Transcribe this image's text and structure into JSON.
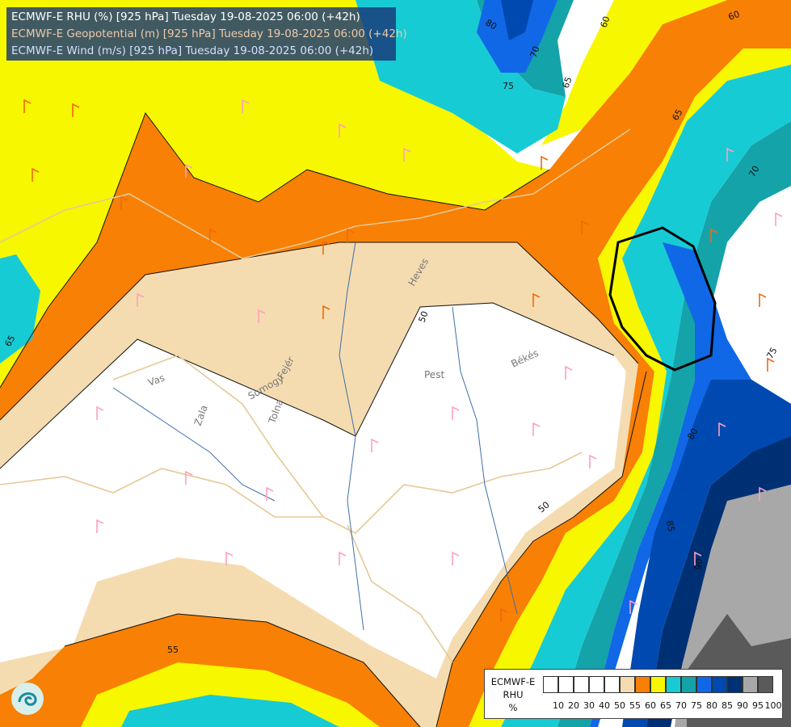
{
  "title_lines": [
    "ECMWF-E RHU (%) [925 hPa] Tuesday 19-08-2025 06:00 (+42h)",
    "ECMWF-E Geopotential (m) [925 hPa] Tuesday 19-08-2025 06:00 (+42h)",
    "ECMWF-E Wind (m/s) [925 hPa] Tuesday 19-08-2025 06:00 (+42h)"
  ],
  "legend": {
    "title_lines": [
      "ECMWF-E",
      "RHU",
      "%"
    ],
    "ticks": [
      "10",
      "20",
      "30",
      "40",
      "50",
      "55",
      "60",
      "65",
      "70",
      "75",
      "80",
      "85",
      "90",
      "95",
      "100"
    ],
    "colors": [
      "#ffffff",
      "#ffffff",
      "#ffffff",
      "#ffffff",
      "#ffffff",
      "#f5dcb0",
      "#f88004",
      "#f7f700",
      "#17cbd4",
      "#14a3a8",
      "#1068e6",
      "#0049b0",
      "#003074",
      "#a8a8a8",
      "#5a5a5a"
    ]
  },
  "region_labels": [
    "Heves",
    "Pest",
    "Békés",
    "Vas",
    "Somogy",
    "Fejér",
    "Zala",
    "Tolna"
  ],
  "contour_labels": [
    "50",
    "50",
    "55",
    "60",
    "60",
    "65",
    "65",
    "65",
    "70",
    "70",
    "75",
    "75",
    "80",
    "80",
    "85",
    "90"
  ]
}
